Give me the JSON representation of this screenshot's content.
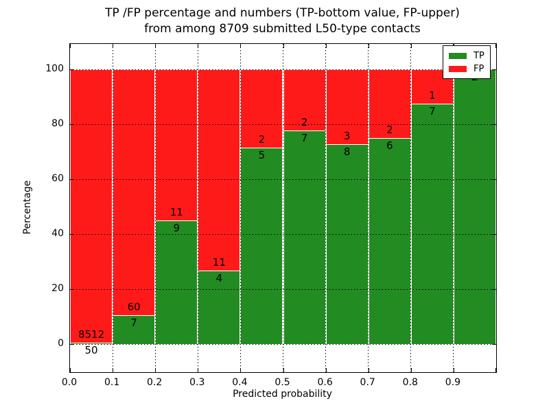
{
  "figure": {
    "title_line1": "TP /FP percentage and numbers (TP-bottom value, FP-upper)",
    "title_line2": "from among 8709 submitted L50-type contacts",
    "xlabel": "Predicted probability",
    "ylabel": "Percentage"
  },
  "legend": {
    "position": "upper right",
    "items": [
      {
        "label": "TP",
        "color": "#228b22"
      },
      {
        "label": "FP",
        "color": "#ff1a1a"
      }
    ]
  },
  "colors": {
    "tp_green": "#228b22",
    "fp_red": "#ff1a1a",
    "bar_edge": "#ffffff",
    "grid": "#000000",
    "background": "#ffffff"
  },
  "chart_data": {
    "type": "bar",
    "stacked": true,
    "title": "TP /FP percentage and numbers (TP-bottom value, FP-upper) from among 8709 submitted L50-type contacts",
    "xlabel": "Predicted probability",
    "ylabel": "Percentage",
    "xlim": [
      0.0,
      1.0
    ],
    "ylim": [
      -10.25,
      109.25
    ],
    "grid": true,
    "grid_style": "dotted",
    "legend_position": "upper right",
    "total_submitted_contacts": 8709,
    "bins": [
      "0.0-0.1",
      "0.1-0.2",
      "0.2-0.3",
      "0.3-0.4",
      "0.4-0.5",
      "0.5-0.6",
      "0.6-0.7",
      "0.7-0.8",
      "0.8-0.9",
      "0.9-1.0"
    ],
    "xticks": [
      "0.0",
      "0.1",
      "0.2",
      "0.3",
      "0.4",
      "0.5",
      "0.6",
      "0.7",
      "0.8",
      "0.9"
    ],
    "yticks": [
      0,
      20,
      40,
      60,
      80,
      100
    ],
    "series": [
      {
        "name": "TP",
        "color": "#228b22",
        "counts": [
          50,
          7,
          9,
          4,
          5,
          7,
          8,
          6,
          7,
          2
        ],
        "pct": [
          0.58,
          10.45,
          45.0,
          26.67,
          71.43,
          77.78,
          72.73,
          75.0,
          87.5,
          100.0
        ]
      },
      {
        "name": "FP",
        "color": "#ff1a1a",
        "counts": [
          8512,
          60,
          11,
          11,
          2,
          2,
          3,
          2,
          1,
          0
        ],
        "pct": [
          99.42,
          89.55,
          55.0,
          73.33,
          28.57,
          22.22,
          27.27,
          25.0,
          12.5,
          0.0
        ]
      }
    ]
  }
}
